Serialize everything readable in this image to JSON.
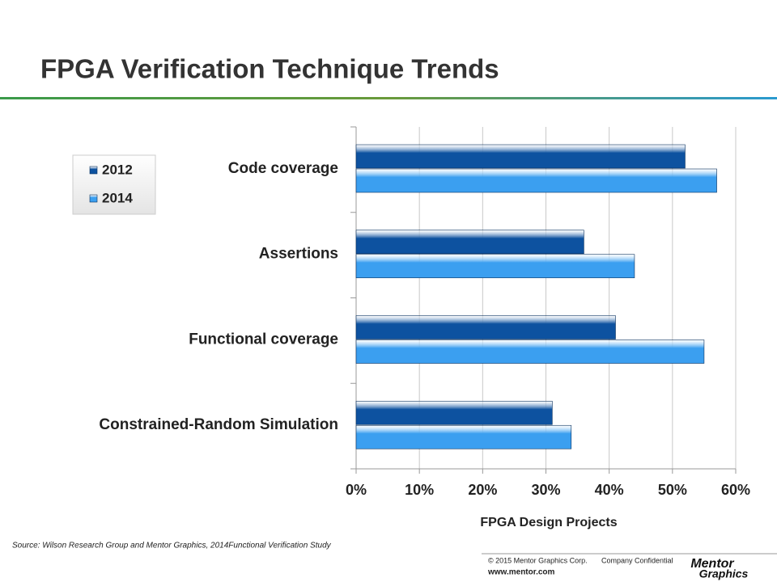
{
  "chart_data": {
    "type": "barh",
    "title": "FPGA Verification Technique Trends",
    "xlabel": "FPGA Design Projects",
    "categories": [
      "Code coverage",
      "Assertions",
      "Functional coverage",
      "Constrained-Random Simulation"
    ],
    "series": [
      {
        "name": "2012",
        "color": "#0d52a0",
        "values": [
          52,
          36,
          41,
          31
        ]
      },
      {
        "name": "2014",
        "color": "#3b9ff0",
        "values": [
          57,
          44,
          55,
          34
        ]
      }
    ],
    "xlim": [
      0,
      60
    ],
    "xticks": [
      {
        "value": 0,
        "label": "0%"
      },
      {
        "value": 10,
        "label": "10%"
      },
      {
        "value": 20,
        "label": "20%"
      },
      {
        "value": 30,
        "label": "30%"
      },
      {
        "value": 40,
        "label": "40%"
      },
      {
        "value": 50,
        "label": "50%"
      },
      {
        "value": 60,
        "label": "60%"
      }
    ],
    "grid": true,
    "legend_position": "upper left"
  },
  "footer": {
    "source": "Source:  Wilson Research Group and Mentor Graphics, 2014Functional Verification Study",
    "copyright": "© 2015 Mentor Graphics Corp.",
    "confidential": "Company Confidential",
    "url": "www.mentor.com",
    "logo_top": "Mentor",
    "logo_bottom": "Graphics"
  }
}
